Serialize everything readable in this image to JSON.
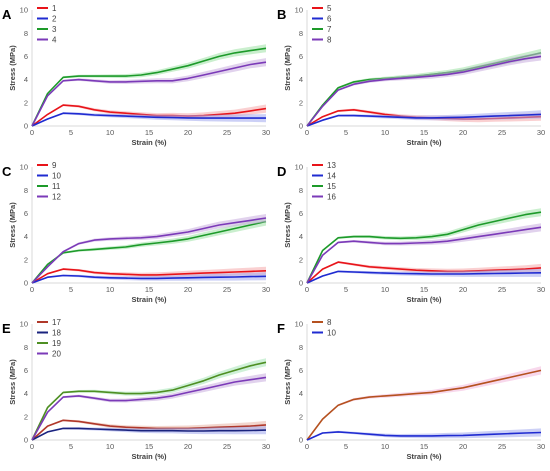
{
  "chart_data": [
    {
      "panel": "A",
      "type": "line",
      "x": [
        0,
        2,
        4,
        6,
        8,
        10,
        12,
        14,
        16,
        18,
        20,
        22,
        24,
        26,
        28,
        30
      ],
      "xlabel": "Strain (%)",
      "ylabel": "Stress (MPa)",
      "xlim": [
        0,
        30
      ],
      "ylim": [
        0,
        10
      ],
      "xticks": [
        0,
        5,
        10,
        15,
        20,
        25,
        30
      ],
      "yticks": [
        0,
        2,
        4,
        6,
        8,
        10
      ],
      "grid": false,
      "legend": "top-left",
      "series": [
        {
          "name": "1",
          "color": "#e8141a",
          "band_color": "#f5a9ab",
          "values": [
            0,
            1.0,
            1.8,
            1.7,
            1.4,
            1.2,
            1.1,
            1.0,
            0.9,
            0.9,
            0.85,
            0.9,
            1.0,
            1.1,
            1.3,
            1.5
          ]
        },
        {
          "name": "2",
          "color": "#1f2bd1",
          "band_color": "#a3a9ee",
          "values": [
            0,
            0.6,
            1.1,
            1.05,
            0.95,
            0.9,
            0.85,
            0.8,
            0.75,
            0.72,
            0.7,
            0.68,
            0.68,
            0.68,
            0.68,
            0.68
          ]
        },
        {
          "name": "3",
          "color": "#1d9a2a",
          "band_color": "#9fe2a6",
          "values": [
            0,
            2.8,
            4.2,
            4.3,
            4.3,
            4.3,
            4.3,
            4.4,
            4.6,
            4.9,
            5.2,
            5.6,
            6.0,
            6.3,
            6.5,
            6.7
          ]
        },
        {
          "name": "4",
          "color": "#7b3ab8",
          "band_color": "#c9addf",
          "values": [
            0,
            2.6,
            3.9,
            4.0,
            3.9,
            3.8,
            3.8,
            3.85,
            3.9,
            3.9,
            4.1,
            4.4,
            4.7,
            5.0,
            5.3,
            5.5
          ]
        }
      ]
    },
    {
      "panel": "B",
      "type": "line",
      "x": [
        0,
        2,
        4,
        6,
        8,
        10,
        12,
        14,
        16,
        18,
        20,
        22,
        24,
        26,
        28,
        30
      ],
      "xlabel": "Strain (%)",
      "ylabel": "Stress (MPa)",
      "xlim": [
        0,
        30
      ],
      "ylim": [
        0,
        10
      ],
      "xticks": [
        0,
        5,
        10,
        15,
        20,
        25,
        30
      ],
      "yticks": [
        0,
        2,
        4,
        6,
        8,
        10
      ],
      "grid": false,
      "legend": "top-left",
      "series": [
        {
          "name": "5",
          "color": "#e8141a",
          "band_color": "#f5a9ab",
          "values": [
            0,
            0.8,
            1.3,
            1.4,
            1.2,
            1.0,
            0.85,
            0.75,
            0.7,
            0.65,
            0.6,
            0.6,
            0.65,
            0.7,
            0.75,
            0.8
          ]
        },
        {
          "name": "6",
          "color": "#1f2bd1",
          "band_color": "#a3a9ee",
          "values": [
            0,
            0.5,
            0.9,
            0.9,
            0.85,
            0.8,
            0.75,
            0.7,
            0.7,
            0.72,
            0.75,
            0.8,
            0.85,
            0.9,
            0.95,
            1.0
          ]
        },
        {
          "name": "7",
          "color": "#1d9a2a",
          "band_color": "#9fe2a6",
          "values": [
            0,
            1.8,
            3.3,
            3.8,
            4.0,
            4.1,
            4.2,
            4.3,
            4.45,
            4.6,
            4.8,
            5.1,
            5.4,
            5.7,
            6.0,
            6.3
          ]
        },
        {
          "name": "8",
          "color": "#7b3ab8",
          "band_color": "#c9addf",
          "values": [
            0,
            1.7,
            3.1,
            3.6,
            3.85,
            4.0,
            4.1,
            4.2,
            4.3,
            4.45,
            4.65,
            4.95,
            5.25,
            5.55,
            5.8,
            6.0
          ]
        }
      ]
    },
    {
      "panel": "C",
      "type": "line",
      "x": [
        0,
        2,
        4,
        6,
        8,
        10,
        12,
        14,
        16,
        18,
        20,
        22,
        24,
        26,
        28,
        30
      ],
      "xlabel": "Strain (%)",
      "ylabel": "Stress (MPa)",
      "xlim": [
        0,
        30
      ],
      "ylim": [
        0,
        10
      ],
      "xticks": [
        0,
        5,
        10,
        15,
        20,
        25,
        30
      ],
      "yticks": [
        0,
        2,
        4,
        6,
        8,
        10
      ],
      "grid": false,
      "legend": "top-left",
      "series": [
        {
          "name": "9",
          "color": "#e8141a",
          "band_color": "#f5a9ab",
          "values": [
            0,
            0.8,
            1.2,
            1.1,
            0.9,
            0.8,
            0.75,
            0.7,
            0.7,
            0.75,
            0.8,
            0.85,
            0.9,
            0.95,
            1.0,
            1.05
          ]
        },
        {
          "name": "10",
          "color": "#1f2bd1",
          "band_color": "#a3a9ee",
          "values": [
            0,
            0.5,
            0.65,
            0.6,
            0.5,
            0.45,
            0.42,
            0.4,
            0.4,
            0.42,
            0.45,
            0.48,
            0.5,
            0.52,
            0.55,
            0.58
          ]
        },
        {
          "name": "11",
          "color": "#1d9a2a",
          "band_color": "#9fe2a6",
          "values": [
            0,
            1.6,
            2.6,
            2.8,
            2.9,
            3.0,
            3.1,
            3.3,
            3.45,
            3.6,
            3.8,
            4.1,
            4.4,
            4.7,
            5.0,
            5.3
          ]
        },
        {
          "name": "12",
          "color": "#7b3ab8",
          "band_color": "#c9addf",
          "values": [
            0,
            1.4,
            2.7,
            3.4,
            3.7,
            3.8,
            3.85,
            3.9,
            4.0,
            4.2,
            4.4,
            4.7,
            5.0,
            5.2,
            5.4,
            5.6
          ]
        }
      ]
    },
    {
      "panel": "D",
      "type": "line",
      "x": [
        0,
        2,
        4,
        6,
        8,
        10,
        12,
        14,
        16,
        18,
        20,
        22,
        24,
        26,
        28,
        30
      ],
      "xlabel": "Strain (%)",
      "ylabel": "Stress (MPa)",
      "xlim": [
        0,
        30
      ],
      "ylim": [
        0,
        10
      ],
      "xticks": [
        0,
        5,
        10,
        15,
        20,
        25,
        30
      ],
      "yticks": [
        0,
        2,
        4,
        6,
        8,
        10
      ],
      "grid": false,
      "legend": "top-left",
      "series": [
        {
          "name": "13",
          "color": "#e8141a",
          "band_color": "#f5a9ab",
          "values": [
            0,
            1.2,
            1.8,
            1.6,
            1.4,
            1.3,
            1.2,
            1.1,
            1.05,
            1.0,
            1.0,
            1.05,
            1.1,
            1.15,
            1.2,
            1.3
          ]
        },
        {
          "name": "14",
          "color": "#1f2bd1",
          "band_color": "#a3a9ee",
          "values": [
            0,
            0.6,
            1.0,
            0.95,
            0.9,
            0.85,
            0.82,
            0.8,
            0.78,
            0.78,
            0.78,
            0.8,
            0.82,
            0.84,
            0.86,
            0.88
          ]
        },
        {
          "name": "15",
          "color": "#1d9a2a",
          "band_color": "#9fe2a6",
          "values": [
            0,
            2.8,
            3.9,
            4.0,
            4.0,
            3.9,
            3.85,
            3.9,
            4.0,
            4.2,
            4.6,
            5.0,
            5.3,
            5.6,
            5.9,
            6.1
          ]
        },
        {
          "name": "16",
          "color": "#7b3ab8",
          "band_color": "#c9addf",
          "values": [
            0,
            2.4,
            3.5,
            3.6,
            3.5,
            3.4,
            3.4,
            3.45,
            3.5,
            3.6,
            3.8,
            4.0,
            4.2,
            4.4,
            4.6,
            4.8
          ]
        }
      ]
    },
    {
      "panel": "E",
      "type": "line",
      "x": [
        0,
        2,
        4,
        6,
        8,
        10,
        12,
        14,
        16,
        18,
        20,
        22,
        24,
        26,
        28,
        30
      ],
      "xlabel": "Strain (%)",
      "ylabel": "Stress (MPa)",
      "xlim": [
        0,
        30
      ],
      "ylim": [
        0,
        10
      ],
      "xticks": [
        0,
        5,
        10,
        15,
        20,
        25,
        30
      ],
      "yticks": [
        0,
        2,
        4,
        6,
        8,
        10
      ],
      "grid": false,
      "legend": "top-left",
      "series": [
        {
          "name": "17",
          "color": "#b0382a",
          "band_color": "#e8b4a6",
          "values": [
            0,
            1.2,
            1.7,
            1.6,
            1.4,
            1.2,
            1.1,
            1.05,
            1.0,
            1.0,
            1.0,
            1.05,
            1.1,
            1.15,
            1.2,
            1.3
          ]
        },
        {
          "name": "18",
          "color": "#1a237e",
          "band_color": "#a3a9ee",
          "values": [
            0,
            0.7,
            1.0,
            1.0,
            0.95,
            0.9,
            0.85,
            0.8,
            0.8,
            0.8,
            0.78,
            0.78,
            0.8,
            0.8,
            0.82,
            0.85
          ]
        },
        {
          "name": "19",
          "color": "#4e8f23",
          "band_color": "#a8e6b8",
          "values": [
            0,
            2.8,
            4.1,
            4.2,
            4.2,
            4.1,
            4.0,
            4.0,
            4.1,
            4.3,
            4.7,
            5.1,
            5.6,
            6.0,
            6.4,
            6.7
          ]
        },
        {
          "name": "20",
          "color": "#7b3ab8",
          "band_color": "#c9addf",
          "values": [
            0,
            2.4,
            3.7,
            3.8,
            3.6,
            3.4,
            3.4,
            3.5,
            3.6,
            3.8,
            4.1,
            4.4,
            4.7,
            5.0,
            5.2,
            5.4
          ]
        }
      ]
    },
    {
      "panel": "F",
      "type": "line",
      "x": [
        0,
        2,
        4,
        6,
        8,
        10,
        12,
        14,
        16,
        18,
        20,
        22,
        24,
        26,
        28,
        30
      ],
      "xlabel": "Strain (%)",
      "ylabel": "Stress (MPa)",
      "xlim": [
        0,
        30
      ],
      "ylim": [
        0,
        10
      ],
      "xticks": [
        0,
        5,
        10,
        15,
        20,
        25,
        30
      ],
      "yticks": [
        0,
        2,
        4,
        6,
        8,
        10
      ],
      "grid": false,
      "legend": "top-left",
      "series": [
        {
          "name": "8",
          "color": "#b5511f",
          "band_color": "#f3b8dd",
          "values": [
            0,
            1.8,
            3.0,
            3.5,
            3.7,
            3.8,
            3.9,
            4.0,
            4.1,
            4.3,
            4.5,
            4.8,
            5.1,
            5.4,
            5.7,
            6.0
          ]
        },
        {
          "name": "10",
          "color": "#1f2bd1",
          "band_color": "#a3a9ee",
          "values": [
            0,
            0.6,
            0.7,
            0.6,
            0.5,
            0.4,
            0.35,
            0.35,
            0.35,
            0.38,
            0.4,
            0.45,
            0.5,
            0.55,
            0.6,
            0.65
          ]
        }
      ]
    }
  ]
}
